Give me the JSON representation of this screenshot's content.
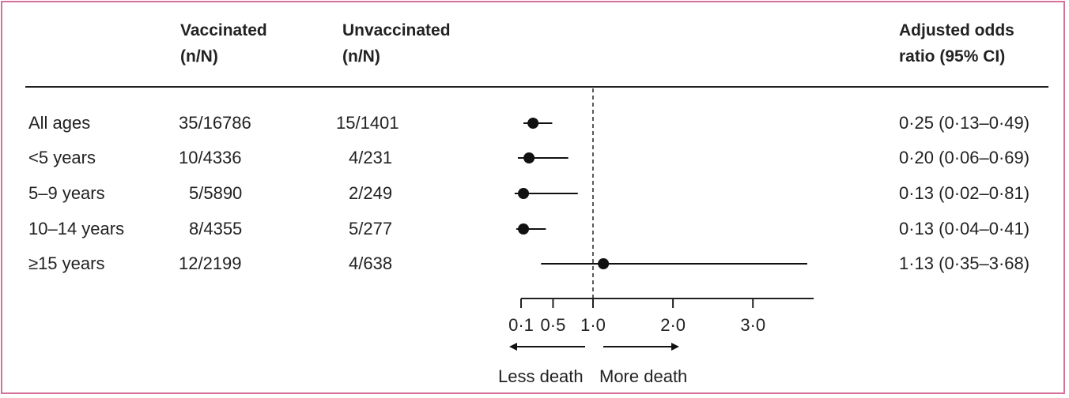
{
  "headers": {
    "vaccinated": [
      "Vaccinated",
      "(n/N)"
    ],
    "unvaccinated": [
      "Unvaccinated",
      "(n/N)"
    ],
    "or": [
      "Adjusted odds",
      "ratio (95% CI)"
    ]
  },
  "rows": [
    {
      "label": "All ages",
      "vaccinated": "35/16786",
      "unvaccinated": "15/1401",
      "or_text": "0·25 (0·13–0·49)"
    },
    {
      "label": "<5 years",
      "vaccinated": "10/4336",
      "unvaccinated": "4/231",
      "or_text": "0·20 (0·06–0·69)"
    },
    {
      "label": "5–9 years",
      "vaccinated": "5/5890",
      "unvaccinated": "2/249",
      "or_text": "0·13 (0·02–0·81)"
    },
    {
      "label": "10–14 years",
      "vaccinated": "8/4355",
      "unvaccinated": "5/277",
      "or_text": "0·13 (0·04–0·41)"
    },
    {
      "label": "≥15 years",
      "vaccinated": "12/2199",
      "unvaccinated": "4/638",
      "or_text": "1·13 (0·35–3·68)"
    }
  ],
  "chart_data": {
    "type": "forest",
    "xlabel": "",
    "xlim": [
      0.1,
      3.68
    ],
    "reference_line": 1.0,
    "x_ticks": [
      0.1,
      0.5,
      1.0,
      2.0,
      3.0
    ],
    "x_tick_labels": [
      "0·1",
      "0·5",
      "1·0",
      "2·0",
      "3·0"
    ],
    "arrow_left_label": "Less death",
    "arrow_right_label": "More death",
    "points": [
      {
        "label": "All ages",
        "or": 0.25,
        "lo": 0.13,
        "hi": 0.49
      },
      {
        "label": "<5 years",
        "or": 0.2,
        "lo": 0.06,
        "hi": 0.69
      },
      {
        "label": "5–9 years",
        "or": 0.13,
        "lo": 0.02,
        "hi": 0.81
      },
      {
        "label": "10–14 years",
        "or": 0.13,
        "lo": 0.04,
        "hi": 0.41
      },
      {
        "label": "≥15 years",
        "or": 1.13,
        "lo": 0.35,
        "hi": 3.68
      }
    ]
  }
}
